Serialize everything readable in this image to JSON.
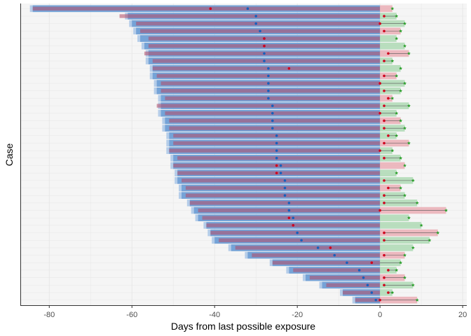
{
  "chart_data": {
    "type": "range-interval",
    "title": "",
    "xlabel": "Days from last possible exposure",
    "ylabel": "Case",
    "xlim": [
      -87,
      21
    ],
    "x_ticks": [
      -80,
      -60,
      -40,
      -20,
      0,
      20
    ],
    "grid": true,
    "legend": "none",
    "colors": {
      "exposure_interval": "#6a9bd4",
      "exposure_interval_light": "#a9c6e6",
      "exposure_overlap": "#b34a66",
      "post_interval_red": "#e8a0a8",
      "post_interval_green": "#9fd4a6",
      "point_blue": "#1560bd",
      "point_red": "#d1001c",
      "point_green": "#2ca02c",
      "connector": "#555555",
      "grid": "#e6e6e6"
    },
    "cases": [
      {
        "blue_start": -84,
        "blue_end": 0,
        "red_start": -84,
        "red_end": 0,
        "blue_x": -32,
        "red_x": -41,
        "green_x": 3
      },
      {
        "blue_start": -61,
        "blue_end": 0,
        "red_start": -63,
        "red_end": 0,
        "blue_x": -30,
        "red_x": 1,
        "green_x": 4
      },
      {
        "blue_start": -60,
        "blue_end": 0,
        "red_start": -59,
        "red_end": 0,
        "blue_x": -30,
        "red_x": 0,
        "green_x": 6
      },
      {
        "blue_start": -59,
        "blue_end": 0,
        "red_start": -58,
        "red_end": 0,
        "blue_x": -29,
        "red_x": 1,
        "green_x": 5
      },
      {
        "blue_start": -58,
        "blue_end": 0,
        "red_start": -56,
        "red_end": 0,
        "blue_x": -28,
        "red_x": -28,
        "green_x": 4
      },
      {
        "blue_start": -57,
        "blue_end": 0,
        "red_start": -56,
        "red_end": 0,
        "blue_x": -28,
        "red_x": -28,
        "green_x": 6
      },
      {
        "blue_start": -56,
        "blue_end": 0,
        "red_start": -57,
        "red_end": 0,
        "blue_x": -28,
        "red_x": 2,
        "green_x": 7
      },
      {
        "blue_start": -56,
        "blue_end": 0,
        "red_start": -55,
        "red_end": 0,
        "blue_x": -28,
        "red_x": 1,
        "green_x": 3
      },
      {
        "blue_start": -55,
        "blue_end": 0,
        "red_start": -55,
        "red_end": 0,
        "blue_x": -27,
        "red_x": -22,
        "green_x": 5
      },
      {
        "blue_start": -55,
        "blue_end": 0,
        "red_start": -54,
        "red_end": 0,
        "blue_x": -27,
        "red_x": 1,
        "green_x": 4
      },
      {
        "blue_start": -54,
        "blue_end": 0,
        "red_start": -53,
        "red_end": 0,
        "blue_x": -27,
        "red_x": 0,
        "green_x": 6
      },
      {
        "blue_start": -54,
        "blue_end": 0,
        "red_start": -53,
        "red_end": 0,
        "blue_x": -27,
        "red_x": 1,
        "green_x": 5
      },
      {
        "blue_start": -53,
        "blue_end": 0,
        "red_start": -52,
        "red_end": 0,
        "blue_x": -27,
        "red_x": 2,
        "green_x": 3
      },
      {
        "blue_start": -53,
        "blue_end": 0,
        "red_start": -54,
        "red_end": 0,
        "blue_x": -26,
        "red_x": 1,
        "green_x": 7
      },
      {
        "blue_start": -53,
        "blue_end": 0,
        "red_start": -52,
        "red_end": 0,
        "blue_x": -26,
        "red_x": 0,
        "green_x": 4
      },
      {
        "blue_start": -52,
        "blue_end": 0,
        "red_start": -51,
        "red_end": 0,
        "blue_x": -26,
        "red_x": 1,
        "green_x": 5
      },
      {
        "blue_start": -52,
        "blue_end": 0,
        "red_start": -51,
        "red_end": 0,
        "blue_x": -26,
        "red_x": 1,
        "green_x": 6
      },
      {
        "blue_start": -51,
        "blue_end": 0,
        "red_start": -50,
        "red_end": 0,
        "blue_x": -25,
        "red_x": 2,
        "green_x": 4
      },
      {
        "blue_start": -51,
        "blue_end": 0,
        "red_start": -50,
        "red_end": 0,
        "blue_x": -25,
        "red_x": 1,
        "green_x": 7
      },
      {
        "blue_start": -51,
        "blue_end": 0,
        "red_start": -51,
        "red_end": 0,
        "blue_x": -25,
        "red_x": 0,
        "green_x": 3
      },
      {
        "blue_start": -50,
        "blue_end": 0,
        "red_start": -49,
        "red_end": 0,
        "blue_x": -25,
        "red_x": 1,
        "green_x": 5
      },
      {
        "blue_start": -50,
        "blue_end": 0,
        "red_start": -50,
        "red_end": 0,
        "blue_x": -24,
        "red_x": -25,
        "green_x": 6
      },
      {
        "blue_start": -49,
        "blue_end": 0,
        "red_start": -49,
        "red_end": 0,
        "blue_x": -24,
        "red_x": -25,
        "green_x": 4
      },
      {
        "blue_start": -49,
        "blue_end": 0,
        "red_start": -48,
        "red_end": 0,
        "blue_x": -23,
        "red_x": 1,
        "green_x": 8
      },
      {
        "blue_start": -48,
        "blue_end": 0,
        "red_start": -47,
        "red_end": 0,
        "blue_x": -23,
        "red_x": 2,
        "green_x": 5
      },
      {
        "blue_start": -48,
        "blue_end": 0,
        "red_start": -47,
        "red_end": 0,
        "blue_x": -23,
        "red_x": 1,
        "green_x": 6
      },
      {
        "blue_start": -46,
        "blue_end": 0,
        "red_start": -46,
        "red_end": 0,
        "blue_x": -22,
        "red_x": 1,
        "green_x": 9
      },
      {
        "blue_start": -45,
        "blue_end": 0,
        "red_start": -44,
        "red_end": 0,
        "blue_x": -22,
        "red_x": 0,
        "green_x": 16
      },
      {
        "blue_start": -44,
        "blue_end": 0,
        "red_start": -43,
        "red_end": 0,
        "blue_x": -21,
        "red_x": -22,
        "green_x": 7
      },
      {
        "blue_start": -42,
        "blue_end": 0,
        "red_start": -42,
        "red_end": 0,
        "blue_x": -21,
        "red_x": -21,
        "green_x": 10
      },
      {
        "blue_start": -41,
        "blue_end": 0,
        "red_start": -41,
        "red_end": 0,
        "blue_x": -20,
        "red_x": 1,
        "green_x": 14
      },
      {
        "blue_start": -40,
        "blue_end": 0,
        "red_start": -39,
        "red_end": 0,
        "blue_x": -19,
        "red_x": 1,
        "green_x": 12
      },
      {
        "blue_start": -36,
        "blue_end": 0,
        "red_start": -35,
        "red_end": 0,
        "blue_x": -15,
        "red_x": -12,
        "green_x": 8
      },
      {
        "blue_start": -32,
        "blue_end": 0,
        "red_start": -31,
        "red_end": 0,
        "blue_x": -11,
        "red_x": 1,
        "green_x": 6
      },
      {
        "blue_start": -26,
        "blue_end": 0,
        "red_start": -26,
        "red_end": 0,
        "blue_x": -8,
        "red_x": -2,
        "green_x": 5
      },
      {
        "blue_start": -22,
        "blue_end": 0,
        "red_start": -21,
        "red_end": 0,
        "blue_x": -5,
        "red_x": 2,
        "green_x": 4
      },
      {
        "blue_start": -18,
        "blue_end": 0,
        "red_start": -17,
        "red_end": 0,
        "blue_x": -4,
        "red_x": 1,
        "green_x": 6
      },
      {
        "blue_start": -14,
        "blue_end": 0,
        "red_start": -13,
        "red_end": 0,
        "blue_x": -3,
        "red_x": 1,
        "green_x": 8
      },
      {
        "blue_start": -9,
        "blue_end": 0,
        "red_start": -9,
        "red_end": 0,
        "blue_x": -2,
        "red_x": 2,
        "green_x": 3
      },
      {
        "blue_start": -6,
        "blue_end": 0,
        "red_start": -6,
        "red_end": 0,
        "blue_x": -1,
        "red_x": 0,
        "green_x": 9
      }
    ]
  }
}
